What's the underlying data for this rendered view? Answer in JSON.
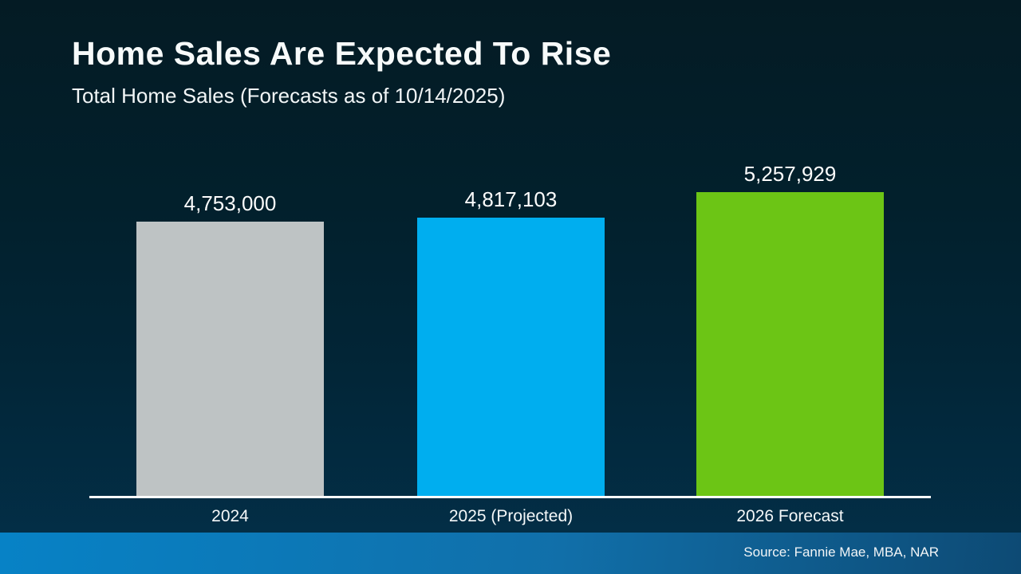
{
  "header": {
    "title": "Home Sales Are Expected To Rise",
    "subtitle": "Total Home Sales (Forecasts as of 10/14/2025)"
  },
  "chart_data": {
    "type": "bar",
    "title": "Home Sales Are Expected To Rise",
    "subtitle": "Total Home Sales (Forecasts as of 10/14/2025)",
    "categories": [
      "2024",
      "2025 (Projected)",
      "2026 Forecast"
    ],
    "values": [
      4753000,
      4817103,
      5257929
    ],
    "value_labels": [
      "4,753,000",
      "4,817,103",
      "5,257,929"
    ],
    "bar_colors": [
      "#bec3c4",
      "#00aeef",
      "#6cc515"
    ],
    "ylim": [
      0,
      5800000
    ],
    "xlabel": "",
    "ylabel": "",
    "grid": false,
    "legend": false
  },
  "footer": {
    "source": "Source: Fannie Mae, MBA, NAR"
  },
  "colors": {
    "background_top": "#041b24",
    "background_bottom": "#03304a",
    "axis_line": "#ffffff",
    "text": "#ffffff",
    "footer_gradient_left": "#0782c6",
    "footer_gradient_right": "#0d4a74",
    "bar_2024": "#bec3c4",
    "bar_2025": "#00aeef",
    "bar_2026": "#6cc515"
  }
}
